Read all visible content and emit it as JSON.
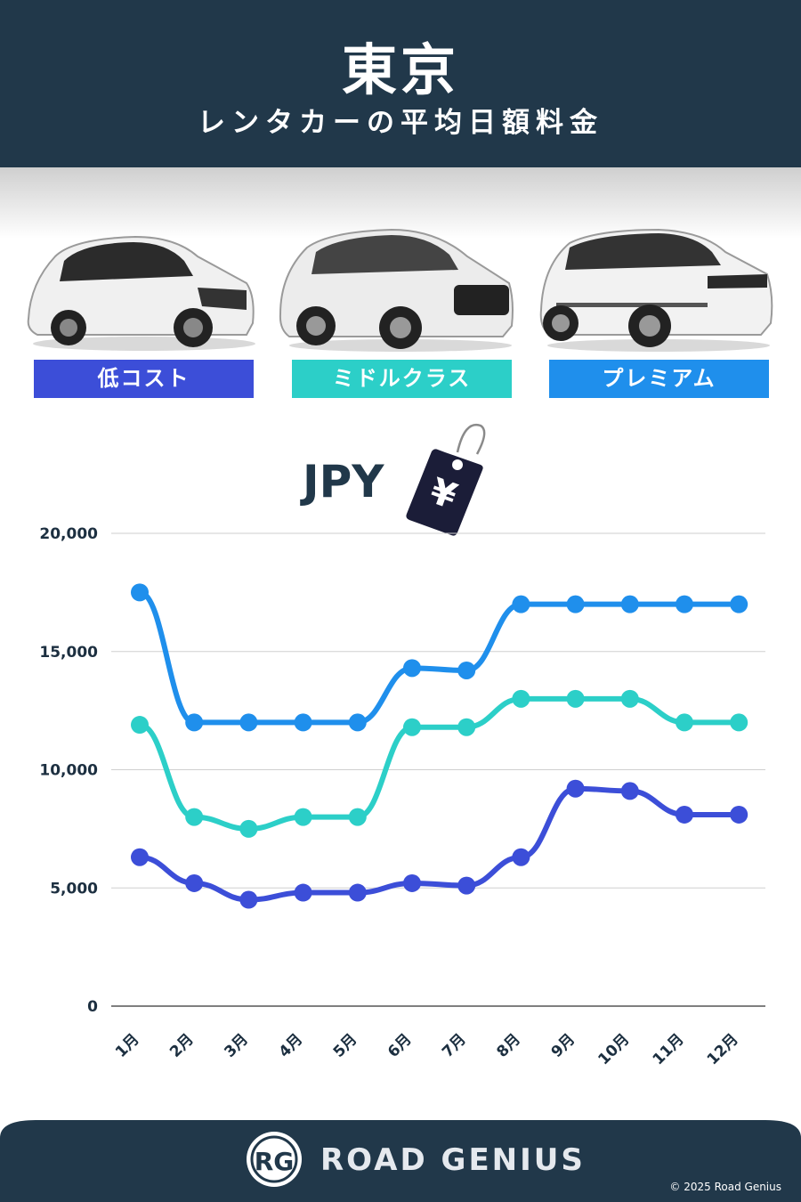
{
  "header": {
    "title": "東京",
    "subtitle": "レンタカーの平均日額料金"
  },
  "badges": [
    {
      "label": "低コスト",
      "color": "#3c4ed8"
    },
    {
      "label": "ミドルクラス",
      "color": "#2ccfc8"
    },
    {
      "label": "プレミアム",
      "color": "#1f8fec"
    }
  ],
  "currency": "JPY",
  "tag_symbol": "¥",
  "chart_data": {
    "type": "line",
    "categories": [
      "1月",
      "2月",
      "3月",
      "4月",
      "5月",
      "6月",
      "7月",
      "8月",
      "9月",
      "10月",
      "11月",
      "12月"
    ],
    "ylim": [
      0,
      20000
    ],
    "yticks": [
      "0",
      "5,000",
      "10,000",
      "15,000",
      "20,000"
    ],
    "grid": true,
    "series": [
      {
        "color": "#1f8fec",
        "values": [
          17500,
          12000,
          12000,
          12000,
          12000,
          14300,
          14200,
          17000,
          17000,
          17000,
          17000,
          17000
        ]
      },
      {
        "color": "#2ccfc8",
        "values": [
          11900,
          8000,
          7500,
          8000,
          8000,
          11800,
          11800,
          13000,
          13000,
          13000,
          12000,
          12000
        ]
      },
      {
        "color": "#3c4ed8",
        "values": [
          6300,
          5200,
          4500,
          4800,
          4800,
          5200,
          5100,
          6300,
          9200,
          9100,
          8100,
          8100
        ]
      }
    ]
  },
  "footer": {
    "logo": "RG",
    "brand": "ROAD GENIUS",
    "copyright": "© 2025 Road Genius"
  }
}
